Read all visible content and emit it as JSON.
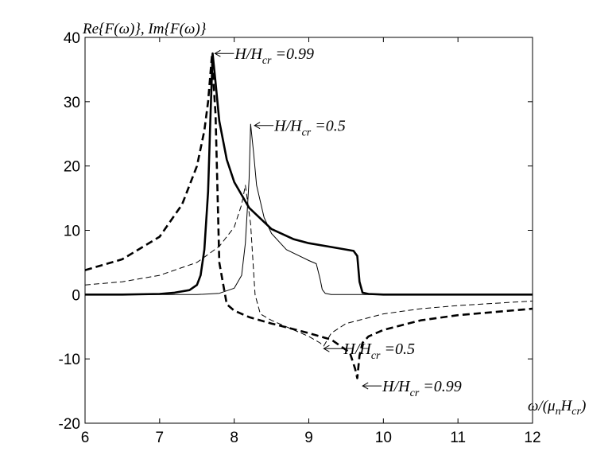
{
  "chart_data": {
    "type": "line",
    "ylabel": "Re{F(ω)}, Im{F(ω)}",
    "xlabel_main": "ω/(μ",
    "xlabel_sub1": "n",
    "xlabel_mid": "H",
    "xlabel_sub2": "cr",
    "xlabel_end": ")",
    "xlim": [
      6,
      12
    ],
    "ylim": [
      -20,
      40
    ],
    "x_ticks": [
      6,
      7,
      8,
      9,
      10,
      11,
      12
    ],
    "y_ticks": [
      -20,
      -10,
      0,
      10,
      20,
      30,
      40
    ],
    "grid": false,
    "series": [
      {
        "style": "solid-thick",
        "x": [
          6.0,
          6.5,
          7.0,
          7.2,
          7.4,
          7.5,
          7.55,
          7.6,
          7.65,
          7.68,
          7.71,
          7.75,
          7.8,
          7.9,
          8.0,
          8.2,
          8.5,
          8.8,
          9.0,
          9.3,
          9.6,
          9.65,
          9.68,
          9.72,
          9.8,
          10.0,
          11.0,
          12.0
        ],
        "y": [
          0.0,
          0.0,
          0.1,
          0.3,
          0.7,
          1.5,
          3.0,
          7.0,
          16.0,
          27.0,
          37.5,
          33.0,
          27.0,
          21.0,
          17.5,
          13.5,
          10.2,
          8.6,
          8.0,
          7.4,
          6.8,
          6.0,
          2.0,
          0.3,
          0.1,
          0.0,
          0.0,
          0.0
        ]
      },
      {
        "style": "dashed-thick",
        "x": [
          6.0,
          6.5,
          7.0,
          7.3,
          7.5,
          7.6,
          7.65,
          7.7,
          7.75,
          7.8,
          7.9,
          8.0,
          8.2,
          8.5,
          9.0,
          9.3,
          9.55,
          9.62,
          9.65,
          9.68,
          9.72,
          9.8,
          10.0,
          10.5,
          11.0,
          12.0
        ],
        "y": [
          3.8,
          5.5,
          9.0,
          14.0,
          20.0,
          25.5,
          30.0,
          37.0,
          28.0,
          5.0,
          -1.5,
          -2.5,
          -3.5,
          -4.5,
          -6.0,
          -7.0,
          -9.0,
          -11.5,
          -13.0,
          -9.5,
          -7.5,
          -6.5,
          -5.5,
          -4.0,
          -3.2,
          -2.2
        ]
      },
      {
        "style": "solid-thin",
        "x": [
          6.0,
          7.0,
          7.5,
          7.8,
          8.0,
          8.1,
          8.15,
          8.2,
          8.22,
          8.26,
          8.3,
          8.4,
          8.5,
          8.7,
          9.0,
          9.1,
          9.15,
          9.18,
          9.22,
          9.3,
          10.0,
          11.0,
          12.0
        ],
        "y": [
          0.0,
          0.0,
          0.0,
          0.2,
          1.0,
          3.0,
          8.0,
          18.0,
          26.5,
          22.0,
          17.0,
          12.0,
          9.5,
          7.0,
          5.3,
          4.8,
          2.5,
          0.8,
          0.2,
          0.0,
          0.0,
          0.0,
          0.0
        ]
      },
      {
        "style": "dashed-thin",
        "x": [
          6.0,
          6.5,
          7.0,
          7.5,
          7.8,
          8.0,
          8.1,
          8.15,
          8.22,
          8.28,
          8.35,
          8.5,
          8.7,
          9.0,
          9.15,
          9.2,
          9.25,
          9.3,
          9.5,
          10.0,
          10.5,
          11.0,
          12.0
        ],
        "y": [
          1.5,
          2.0,
          3.0,
          5.0,
          7.5,
          10.5,
          14.0,
          17.0,
          11.0,
          0.0,
          -3.0,
          -4.0,
          -5.0,
          -6.5,
          -7.5,
          -8.0,
          -7.0,
          -6.0,
          -4.5,
          -3.0,
          -2.2,
          -1.7,
          -1.0
        ]
      }
    ],
    "annotations": [
      {
        "text": "H/H",
        "sub": "cr",
        "rest": "=0.99",
        "x": 7.72,
        "y": 37.5
      },
      {
        "text": "H/H",
        "sub": "cr",
        "rest": "=0.5",
        "x": 8.25,
        "y": 26.3
      },
      {
        "text": "H/H",
        "sub": "cr",
        "rest": "=0.5",
        "x": 9.18,
        "y": -8.4
      },
      {
        "text": "H/H",
        "sub": "cr",
        "rest": "=0.99",
        "x": 9.7,
        "y": -14.2
      }
    ]
  }
}
